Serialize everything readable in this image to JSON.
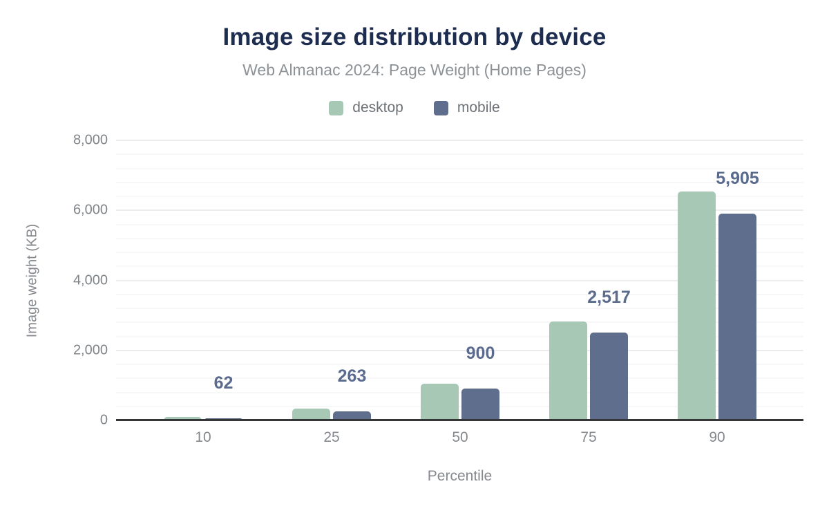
{
  "header": {
    "title": "Image size distribution by device",
    "subtitle": "Web Almanac 2024: Page Weight (Home Pages)"
  },
  "legend": {
    "items": [
      {
        "label": "desktop",
        "color": "#a6c8b5"
      },
      {
        "label": "mobile",
        "color": "#5f6e8c"
      }
    ]
  },
  "chart_data": {
    "type": "bar",
    "title": "Image size distribution by device",
    "subtitle": "Web Almanac 2024: Page Weight (Home Pages)",
    "categories": [
      "10",
      "25",
      "50",
      "75",
      "90"
    ],
    "series": [
      {
        "name": "desktop",
        "color": "#a6c8b5",
        "values": [
          105,
          340,
          1050,
          2830,
          6530
        ]
      },
      {
        "name": "mobile",
        "color": "#5f6e8c",
        "values": [
          62,
          263,
          900,
          2517,
          5905
        ],
        "data_labels": [
          "62",
          "263",
          "900",
          "2,517",
          "5,905"
        ]
      }
    ],
    "xlabel": "Percentile",
    "ylabel": "Image weight (KB)",
    "ylim": [
      0,
      8000
    ],
    "yticks": [
      {
        "value": 0,
        "label": "0"
      },
      {
        "value": 2000,
        "label": "2,000"
      },
      {
        "value": 4000,
        "label": "4,000"
      },
      {
        "value": 6000,
        "label": "6,000"
      },
      {
        "value": 8000,
        "label": "8,000"
      }
    ],
    "minor_grid_unit": 400,
    "grid": "on",
    "legend_position": "top",
    "data_label_color": "#5a6b8e",
    "axis_line_color": "#343638"
  }
}
